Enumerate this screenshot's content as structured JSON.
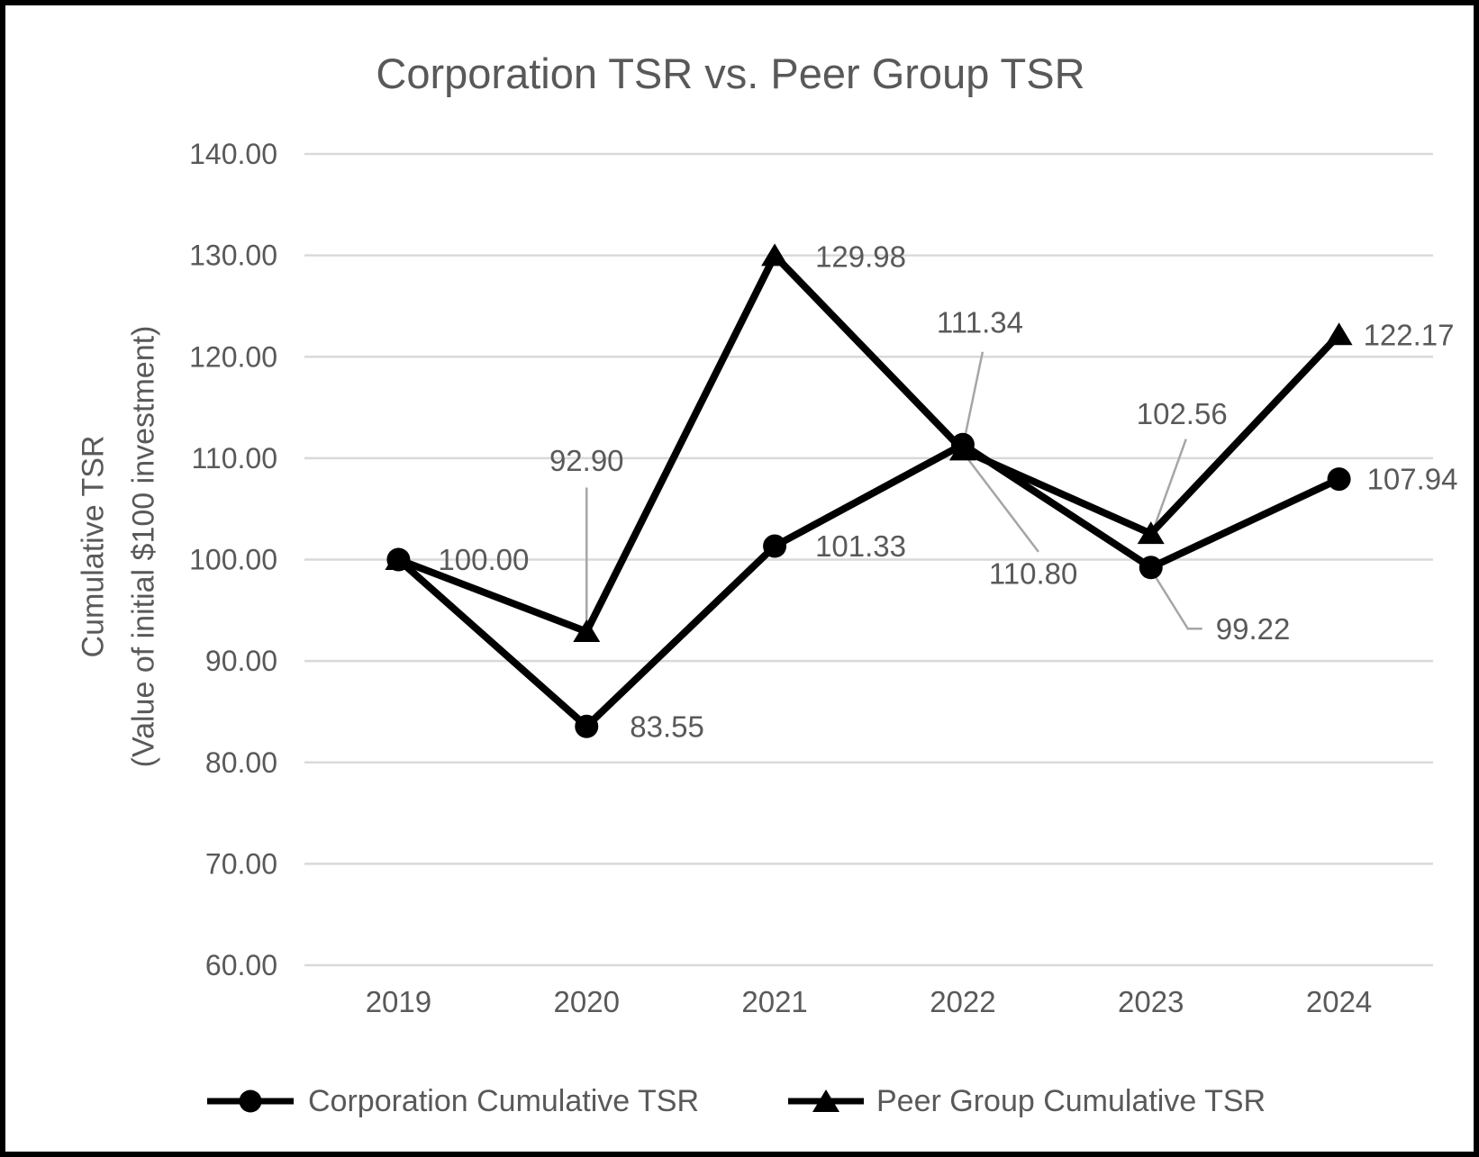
{
  "title": "Corporation TSR vs. Peer Group TSR",
  "y_axis": {
    "title_line1": "Cumulative TSR",
    "title_line2": "(Value of initial $100 investment)",
    "tick_labels": [
      "140.00",
      "130.00",
      "120.00",
      "110.00",
      "100.00",
      "90.00",
      "80.00",
      "70.00",
      "60.00"
    ],
    "min": 60,
    "max": 140,
    "step": 10
  },
  "x_axis": {
    "tick_labels": [
      "2019",
      "2020",
      "2021",
      "2022",
      "2023",
      "2024"
    ]
  },
  "chart_data": {
    "type": "line",
    "title": "Corporation TSR vs. Peer Group TSR",
    "categories": [
      "2019",
      "2020",
      "2021",
      "2022",
      "2023",
      "2024"
    ],
    "series": [
      {
        "name": "Corporation Cumulative TSR",
        "marker": "circle",
        "values": [
          100.0,
          83.55,
          101.33,
          111.34,
          99.22,
          107.94
        ],
        "point_labels": [
          "100.00",
          "83.55",
          "101.33",
          "111.34",
          "99.22",
          "107.94"
        ]
      },
      {
        "name": "Peer Group Cumulative TSR",
        "marker": "triangle",
        "values": [
          100.0,
          92.9,
          129.98,
          110.8,
          102.56,
          122.17
        ],
        "point_labels": [
          null,
          "92.90",
          "129.98",
          "110.80",
          "102.56",
          "122.17"
        ]
      }
    ],
    "ylabel": "Cumulative TSR (Value of initial $100 investment)",
    "ylim": [
      60,
      140
    ],
    "grid": true,
    "legend_position": "bottom"
  },
  "legend": {
    "items": [
      {
        "label": "Corporation Cumulative TSR",
        "marker": "circle"
      },
      {
        "label": "Peer Group Cumulative TSR",
        "marker": "triangle"
      }
    ]
  },
  "colors": {
    "text": "#595959",
    "gridline": "#d9d9d9",
    "leader_line": "#a6a6a6",
    "series": "#000000",
    "border": "#000000",
    "background": "#ffffff"
  }
}
